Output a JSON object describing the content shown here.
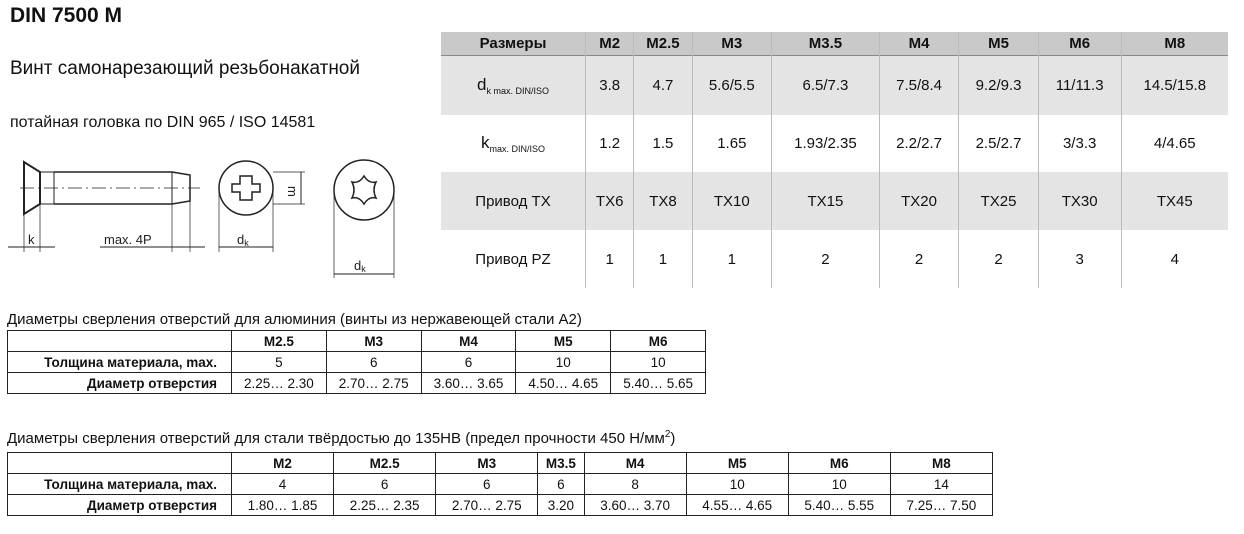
{
  "title": "DIN 7500 M",
  "subtitle": "Винт самонарезающий резьбонакатной",
  "subtitle2": "потайная головка по DIN 965 / ISO 14581",
  "drawing": {
    "k": "k",
    "length": "max. 4P",
    "dk": "d",
    "dk_sub": "k",
    "m": "m",
    "dk2": "d",
    "dk2_sub": "k"
  },
  "main_table": {
    "header": [
      "Размеры",
      "M2",
      "M2.5",
      "M3",
      "M3.5",
      "M4",
      "M5",
      "M6",
      "M8"
    ],
    "rows": [
      {
        "label": "d",
        "label_sub": "k max. DIN/ISO",
        "values": [
          "3.8",
          "4.7",
          "5.6/5.5",
          "6.5/7.3",
          "7.5/8.4",
          "9.2/9.3",
          "11/11.3",
          "14.5/15.8"
        ]
      },
      {
        "label": "k",
        "label_sub": "max. DIN/ISO",
        "values": [
          "1.2",
          "1.5",
          "1.65",
          "1.93/2.35",
          "2.2/2.7",
          "2.5/2.7",
          "3/3.3",
          "4/4.65"
        ]
      },
      {
        "label": "Привод TX",
        "values": [
          "TX6",
          "TX8",
          "TX10",
          "TX15",
          "TX20",
          "TX25",
          "TX30",
          "TX45"
        ]
      },
      {
        "label": "Привод PZ",
        "values": [
          "1",
          "1",
          "1",
          "2",
          "2",
          "2",
          "3",
          "4"
        ]
      }
    ]
  },
  "aluminium": {
    "caption": "Диаметры сверления отверстий для алюминия (винты из нержавеющей стали А2)",
    "header": [
      "",
      "M2.5",
      "M3",
      "M4",
      "M5",
      "M6"
    ],
    "rows": [
      [
        "Толщина материала, max.",
        "5",
        "6",
        "6",
        "10",
        "10"
      ],
      [
        "Диаметр отверстия",
        "2.25… 2.30",
        "2.70… 2.75",
        "3.60… 3.65",
        "4.50… 4.65",
        "5.40… 5.65"
      ]
    ]
  },
  "steel": {
    "caption": "Диаметры сверления отверстий для стали твёрдостью до 135HB (предел прочности 450 Н/мм",
    "caption_sup": "2",
    "caption_end": ")",
    "header": [
      "",
      "M2",
      "M2.5",
      "M3",
      "M3.5",
      "M4",
      "M5",
      "M6",
      "M8"
    ],
    "rows": [
      [
        "Толщина материала, max.",
        "4",
        "6",
        "6",
        "6",
        "8",
        "10",
        "10",
        "14"
      ],
      [
        "Диаметр отверстия",
        "1.80… 1.85",
        "2.25… 2.35",
        "2.70… 2.75",
        "3.20",
        "3.60… 3.70",
        "4.55… 4.65",
        "5.40… 5.55",
        "7.25… 7.50"
      ]
    ]
  }
}
